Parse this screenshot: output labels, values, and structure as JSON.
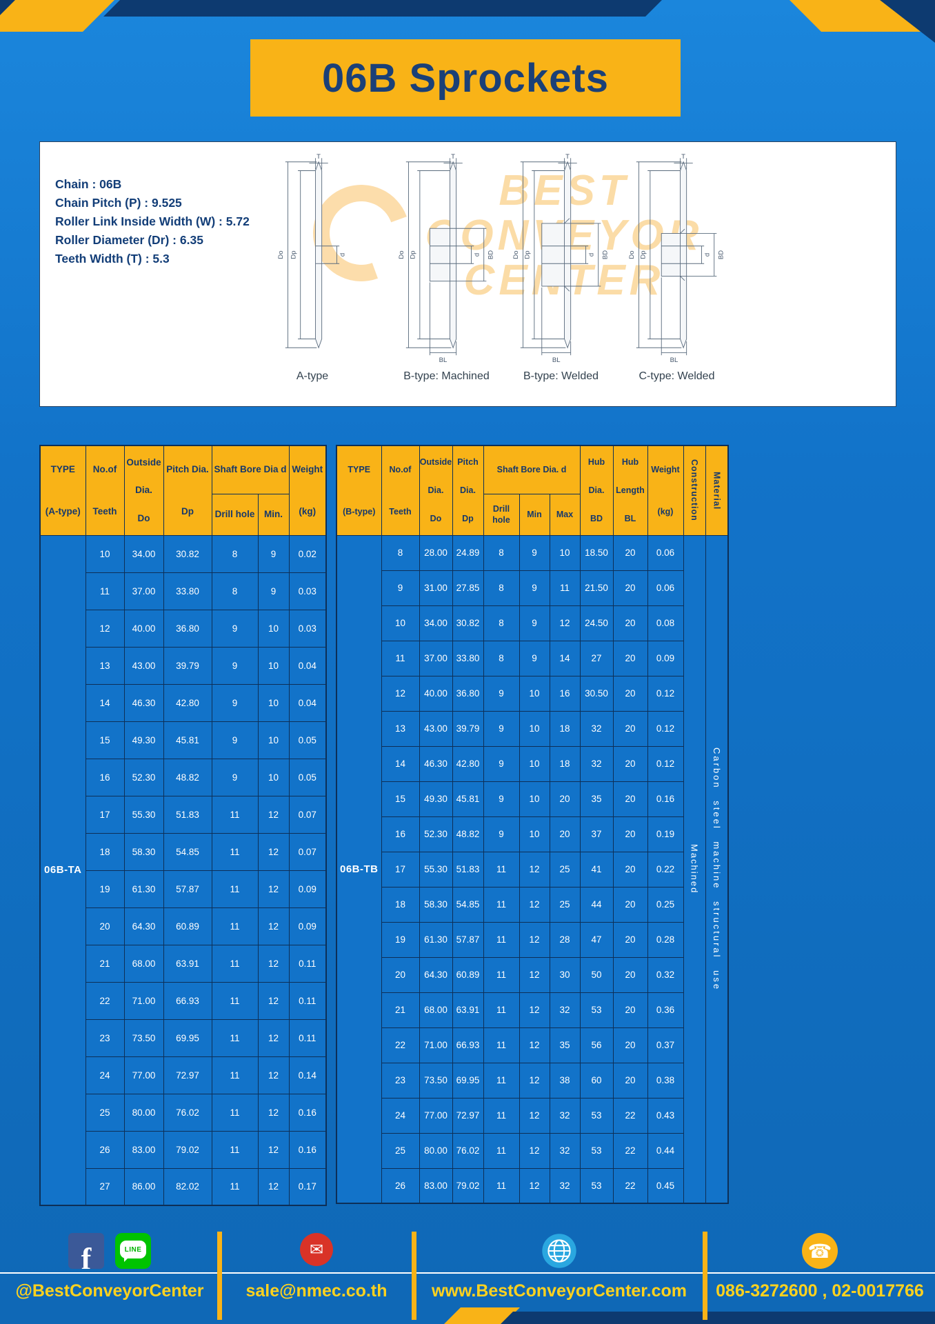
{
  "header": {
    "title": "06B Sprockets"
  },
  "specs": {
    "lines": [
      "Chain : 06B",
      "Chain Pitch (P) : 9.525",
      "Roller Link Inside Width (W) : 5.72",
      "Roller Diameter (Dr) : 6.35",
      "Teeth Width (T) : 5.3"
    ]
  },
  "watermark": {
    "line1": "BEST",
    "line2": "CONVEYOR",
    "line3": "CENTER"
  },
  "diagrams": {
    "dims": {
      "t": "T",
      "do": "Do",
      "dp": "Dp",
      "d": "d",
      "bl": "BL",
      "bd": "BD"
    },
    "items": [
      {
        "caption": "A-type"
      },
      {
        "caption": "B-type: Machined"
      },
      {
        "caption": "B-type: Welded"
      },
      {
        "caption": "C-type: Welded"
      }
    ]
  },
  "table_a": {
    "headers": {
      "type": [
        "TYPE",
        "(A-type)"
      ],
      "teeth": [
        "No.of",
        "Teeth"
      ],
      "outside": [
        "Outside",
        "Dia.",
        "Do"
      ],
      "pitch": [
        "Pitch Dia.",
        "Dp"
      ],
      "bore_group": "Shaft Bore Dia d",
      "drill": "Drill hole",
      "min": "Min.",
      "weight": [
        "Weight",
        "(kg)"
      ]
    },
    "type_value": "06B-TA",
    "rows": [
      [
        "10",
        "34.00",
        "30.82",
        "8",
        "9",
        "0.02"
      ],
      [
        "11",
        "37.00",
        "33.80",
        "8",
        "9",
        "0.03"
      ],
      [
        "12",
        "40.00",
        "36.80",
        "9",
        "10",
        "0.03"
      ],
      [
        "13",
        "43.00",
        "39.79",
        "9",
        "10",
        "0.04"
      ],
      [
        "14",
        "46.30",
        "42.80",
        "9",
        "10",
        "0.04"
      ],
      [
        "15",
        "49.30",
        "45.81",
        "9",
        "10",
        "0.05"
      ],
      [
        "16",
        "52.30",
        "48.82",
        "9",
        "10",
        "0.05"
      ],
      [
        "17",
        "55.30",
        "51.83",
        "11",
        "12",
        "0.07"
      ],
      [
        "18",
        "58.30",
        "54.85",
        "11",
        "12",
        "0.07"
      ],
      [
        "19",
        "61.30",
        "57.87",
        "11",
        "12",
        "0.09"
      ],
      [
        "20",
        "64.30",
        "60.89",
        "11",
        "12",
        "0.09"
      ],
      [
        "21",
        "68.00",
        "63.91",
        "11",
        "12",
        "0.11"
      ],
      [
        "22",
        "71.00",
        "66.93",
        "11",
        "12",
        "0.11"
      ],
      [
        "23",
        "73.50",
        "69.95",
        "11",
        "12",
        "0.11"
      ],
      [
        "24",
        "77.00",
        "72.97",
        "11",
        "12",
        "0.14"
      ],
      [
        "25",
        "80.00",
        "76.02",
        "11",
        "12",
        "0.16"
      ],
      [
        "26",
        "83.00",
        "79.02",
        "11",
        "12",
        "0.16"
      ],
      [
        "27",
        "86.00",
        "82.02",
        "11",
        "12",
        "0.17"
      ]
    ]
  },
  "table_b": {
    "headers": {
      "type": [
        "TYPE",
        "(B-type)"
      ],
      "teeth": [
        "No.of",
        "Teeth"
      ],
      "outside": [
        "Outside",
        "Dia.",
        "Do"
      ],
      "pitch": [
        "Pitch",
        "Dia.",
        "Dp"
      ],
      "bore_group": "Shaft Bore Dia. d",
      "drill": "Drill hole",
      "min": "Min",
      "max": "Max",
      "hub_dia": [
        "Hub",
        "Dia.",
        "BD"
      ],
      "hub_length": [
        "Hub",
        "Length",
        "BL"
      ],
      "weight": [
        "Weight",
        "(kg)"
      ],
      "construction": "Construction",
      "material": "Material"
    },
    "type_value": "06B-TB",
    "construction_value": "Machined",
    "material_value": "Carbon steel machine structural use",
    "rows": [
      [
        "8",
        "28.00",
        "24.89",
        "8",
        "9",
        "10",
        "18.50",
        "20",
        "0.06"
      ],
      [
        "9",
        "31.00",
        "27.85",
        "8",
        "9",
        "11",
        "21.50",
        "20",
        "0.06"
      ],
      [
        "10",
        "34.00",
        "30.82",
        "8",
        "9",
        "12",
        "24.50",
        "20",
        "0.08"
      ],
      [
        "11",
        "37.00",
        "33.80",
        "8",
        "9",
        "14",
        "27",
        "20",
        "0.09"
      ],
      [
        "12",
        "40.00",
        "36.80",
        "9",
        "10",
        "16",
        "30.50",
        "20",
        "0.12"
      ],
      [
        "13",
        "43.00",
        "39.79",
        "9",
        "10",
        "18",
        "32",
        "20",
        "0.12"
      ],
      [
        "14",
        "46.30",
        "42.80",
        "9",
        "10",
        "18",
        "32",
        "20",
        "0.12"
      ],
      [
        "15",
        "49.30",
        "45.81",
        "9",
        "10",
        "20",
        "35",
        "20",
        "0.16"
      ],
      [
        "16",
        "52.30",
        "48.82",
        "9",
        "10",
        "20",
        "37",
        "20",
        "0.19"
      ],
      [
        "17",
        "55.30",
        "51.83",
        "11",
        "12",
        "25",
        "41",
        "20",
        "0.22"
      ],
      [
        "18",
        "58.30",
        "54.85",
        "11",
        "12",
        "25",
        "44",
        "20",
        "0.25"
      ],
      [
        "19",
        "61.30",
        "57.87",
        "11",
        "12",
        "28",
        "47",
        "20",
        "0.28"
      ],
      [
        "20",
        "64.30",
        "60.89",
        "11",
        "12",
        "30",
        "50",
        "20",
        "0.32"
      ],
      [
        "21",
        "68.00",
        "63.91",
        "11",
        "12",
        "32",
        "53",
        "20",
        "0.36"
      ],
      [
        "22",
        "71.00",
        "66.93",
        "11",
        "12",
        "35",
        "56",
        "20",
        "0.37"
      ],
      [
        "23",
        "73.50",
        "69.95",
        "11",
        "12",
        "38",
        "60",
        "20",
        "0.38"
      ],
      [
        "24",
        "77.00",
        "72.97",
        "11",
        "12",
        "32",
        "53",
        "22",
        "0.43"
      ],
      [
        "25",
        "80.00",
        "76.02",
        "11",
        "12",
        "32",
        "53",
        "22",
        "0.44"
      ],
      [
        "26",
        "83.00",
        "79.02",
        "11",
        "12",
        "32",
        "53",
        "22",
        "0.45"
      ]
    ]
  },
  "footer": {
    "facebook_letter": "f",
    "line_label": "LINE",
    "email_glyph": "✉",
    "phone_glyph": "☎",
    "sections": [
      {
        "icon": "facebook-line-icons",
        "text": "@BestConveyorCenter"
      },
      {
        "icon": "email-icon",
        "text": "sale@nmec.co.th"
      },
      {
        "icon": "globe-icon",
        "text": "www.BestConveyorCenter.com"
      },
      {
        "icon": "phone-icon",
        "text": "086-3272600 , 02-0017766"
      }
    ]
  },
  "colors": {
    "page_blue": "#1273c9",
    "accent_yellow": "#f9b317",
    "navy": "#0d3a70",
    "footer_text_yellow": "#ffd21e",
    "header_text_navy": "#16386b"
  }
}
